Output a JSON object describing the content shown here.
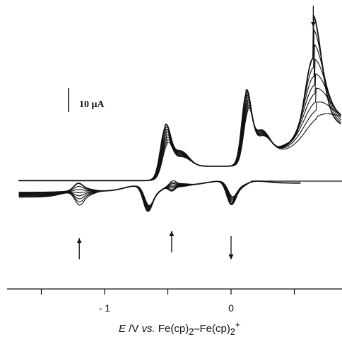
{
  "chart_data": {
    "type": "line",
    "title": "",
    "xlabel_parts": [
      "E",
      " /V ",
      "vs.",
      "  Fe(cp)",
      "2",
      "–Fe(cp)",
      "2",
      "+"
    ],
    "xlim": [
      -1.65,
      0.87
    ],
    "x_ticks": [
      -1.5,
      -1.0,
      -0.5,
      0.0,
      0.5
    ],
    "x_tick_labels": [
      {
        "x": -1.0,
        "label": "- 1"
      },
      {
        "x": 0.0,
        "label": "0"
      }
    ],
    "scale_bar": {
      "label": "10 μA",
      "value_uA": 10
    },
    "ylim_uA": [
      -22,
      51
    ],
    "grid": false,
    "legend": "none",
    "cycles": 8,
    "peaks": {
      "anodic_E": [
        -0.52,
        0.12,
        0.65
      ],
      "anodic_first_cycle_uA": [
        24,
        32,
        43
      ],
      "anodic_last_cycle_uA": [
        17,
        25,
        11
      ],
      "cathodic_E": [
        -1.2,
        -0.65,
        -0.46,
        0.01
      ],
      "cathodic_first_cycle_uA": [
        -10,
        -13,
        -2,
        -11
      ],
      "cathodic_last_cycle_uA": [
        -0.5,
        -15.5,
        -6.5,
        -14.5
      ]
    },
    "arrows": [
      {
        "x": 0.65,
        "direction": "down"
      },
      {
        "x": -1.2,
        "direction": "up"
      },
      {
        "x": -0.47,
        "direction": "up"
      },
      {
        "x": 0.0,
        "direction": "down"
      }
    ]
  }
}
